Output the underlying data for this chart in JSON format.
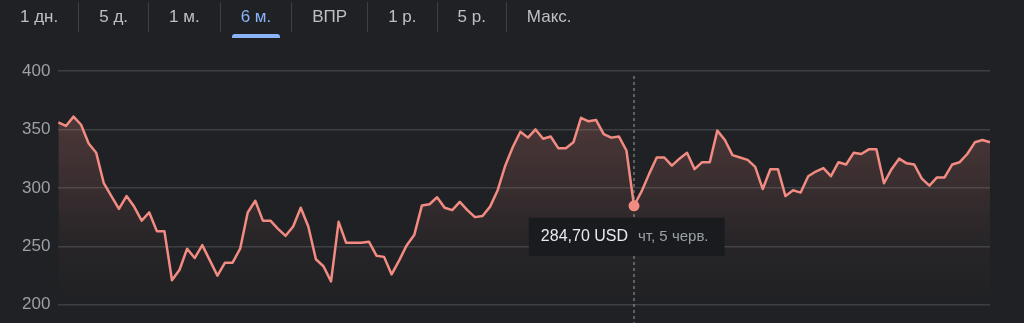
{
  "chart_data": {
    "type": "area",
    "categories": [
      null,
      null,
      null,
      null,
      null,
      null,
      null,
      null,
      null,
      null,
      null,
      null,
      null,
      null,
      null,
      null,
      null,
      null,
      null,
      null,
      null,
      null,
      null,
      null,
      null,
      null,
      null,
      null,
      null,
      null,
      null,
      null,
      null,
      null,
      null,
      null,
      null,
      null,
      null,
      null,
      null,
      null,
      null,
      null,
      null,
      null,
      null,
      null,
      null,
      null,
      null,
      null,
      null,
      null,
      null,
      null,
      null,
      null,
      null,
      null,
      null,
      null,
      null,
      null,
      null,
      null,
      null,
      null,
      null,
      null,
      null,
      null,
      null,
      null,
      null,
      null,
      null,
      null,
      null,
      null,
      null,
      null,
      null,
      null,
      null,
      null,
      null,
      null,
      null,
      null,
      null,
      null,
      null,
      null,
      null,
      null,
      null,
      null,
      null,
      null,
      null,
      null,
      null,
      null,
      null,
      null,
      null,
      null,
      null,
      null,
      null,
      null,
      null,
      null,
      null,
      null,
      null,
      null,
      null,
      null,
      null,
      null,
      null,
      null
    ],
    "series": [
      {
        "color": "#f28b82",
        "values": [
          356,
          353,
          361,
          354,
          338,
          330,
          304,
          293,
          282,
          293,
          284,
          272,
          279,
          263,
          263,
          221,
          230,
          248,
          240,
          251,
          238,
          225,
          236,
          236,
          248,
          279,
          289,
          272,
          272,
          265,
          259,
          267,
          283,
          267,
          239,
          233,
          220,
          271,
          253,
          253,
          253,
          254,
          242,
          241,
          226,
          238,
          251,
          260,
          285,
          286,
          292,
          283,
          281,
          288,
          281,
          275,
          276,
          284,
          298,
          319,
          335,
          348,
          343,
          350,
          342,
          344,
          334,
          334,
          339,
          360,
          357,
          358,
          346,
          343,
          344,
          332,
          284.7,
          297,
          312,
          326,
          326,
          319,
          325,
          330,
          316,
          322,
          322,
          349,
          341,
          328,
          326,
          324,
          318,
          299,
          316,
          316,
          293,
          298,
          296,
          310,
          314,
          317,
          310,
          322,
          320,
          330,
          329,
          333,
          333,
          304,
          316,
          325,
          321,
          320,
          308,
          302,
          309,
          309,
          320,
          322,
          329,
          339,
          341,
          339
        ],
        "value_labels": [
          null,
          null,
          null,
          null,
          null,
          null,
          null,
          null,
          null,
          null,
          null,
          null,
          null,
          null,
          null,
          null,
          null,
          null,
          null,
          null,
          null,
          null,
          null,
          null,
          null,
          null,
          null,
          null,
          null,
          null,
          null,
          null,
          null,
          null,
          null,
          null,
          null,
          null,
          null,
          null,
          null,
          null,
          null,
          null,
          null,
          null,
          null,
          null,
          null,
          null,
          null,
          null,
          null,
          null,
          null,
          null,
          null,
          null,
          null,
          null,
          null,
          null,
          null,
          null,
          null,
          null,
          null,
          null,
          null,
          null,
          null,
          null,
          null,
          null,
          null,
          null,
          "284,70 USD",
          null,
          null,
          null,
          null,
          null,
          null,
          null,
          null,
          null,
          null,
          null,
          null,
          null,
          null,
          null,
          null,
          null,
          null,
          null,
          null,
          null,
          null,
          null,
          null,
          null,
          null,
          null,
          null,
          null,
          null,
          null,
          null,
          null,
          null,
          null,
          null,
          null,
          null,
          null,
          null,
          null,
          null,
          null,
          null,
          null,
          null,
          null
        ]
      }
    ],
    "ylim": [
      200,
      400
    ],
    "yticks": [
      200,
      250,
      300,
      350,
      400
    ],
    "grid": "y",
    "tick_labels": "y",
    "annotations": [
      "1 дн.",
      "5 д.",
      "1 м.",
      "6 м.",
      "ВПР",
      "1 р.",
      "5 р.",
      "Макс.",
      "чт, 5 черв."
    ]
  }
}
